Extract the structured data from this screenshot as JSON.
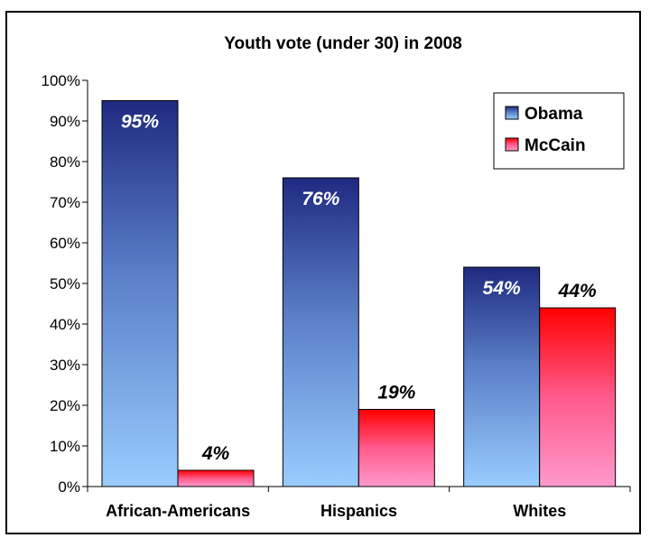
{
  "chart_data": {
    "type": "bar",
    "title": "Youth vote (under 30) in 2008",
    "categories": [
      "African-Americans",
      "Hispanics",
      "Whites"
    ],
    "series": [
      {
        "name": "Obama",
        "values": [
          95,
          76,
          54
        ],
        "labels": [
          "95%",
          "76%",
          "54%"
        ],
        "color": "#1f2a80",
        "color_light": "#99ccff"
      },
      {
        "name": "McCain",
        "values": [
          4,
          19,
          44
        ],
        "labels": [
          "4%",
          "19%",
          "44%"
        ],
        "color": "#ff0000",
        "color_light": "#ff99cc"
      }
    ],
    "y_ticks": [
      "0%",
      "10%",
      "20%",
      "30%",
      "40%",
      "50%",
      "60%",
      "70%",
      "80%",
      "90%",
      "100%"
    ],
    "ylim": [
      0,
      100
    ],
    "xlabel": "",
    "ylabel": "",
    "grid": false,
    "legend_position": "top-right"
  }
}
